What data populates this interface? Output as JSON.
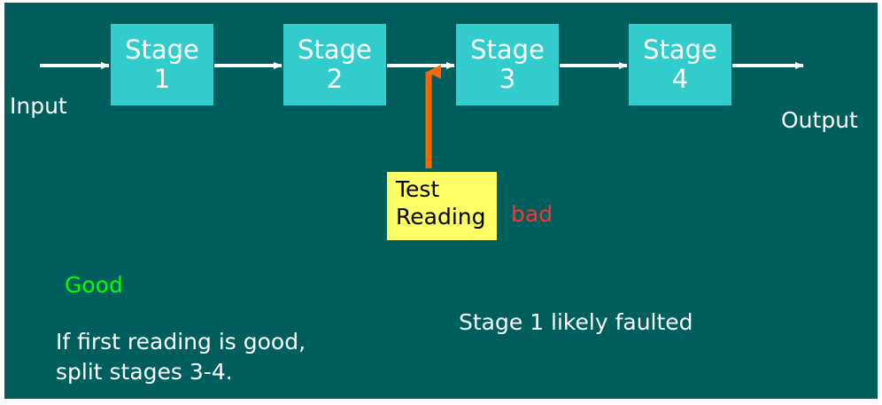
{
  "diagram": {
    "input_label": "Input",
    "output_label": "Output",
    "stages": [
      {
        "name": "Stage",
        "number": "1"
      },
      {
        "name": "Stage",
        "number": "2"
      },
      {
        "name": "Stage",
        "number": "3"
      },
      {
        "name": "Stage",
        "number": "4"
      }
    ],
    "test_reading": {
      "line1": "Test",
      "line2": "Reading"
    },
    "bad_label": "bad",
    "good_label": "Good",
    "good_note": {
      "line1": "If first reading is good,",
      "line2": "split stages 3-4."
    },
    "bad_note": "Stage 1 likely faulted"
  },
  "colors": {
    "background": "#005f5d",
    "stage_fill": "#33cccc",
    "test_fill": "#ffff66",
    "probe_arrow": "#ff6600",
    "good": "#00ff00",
    "bad": "#ff3333"
  }
}
